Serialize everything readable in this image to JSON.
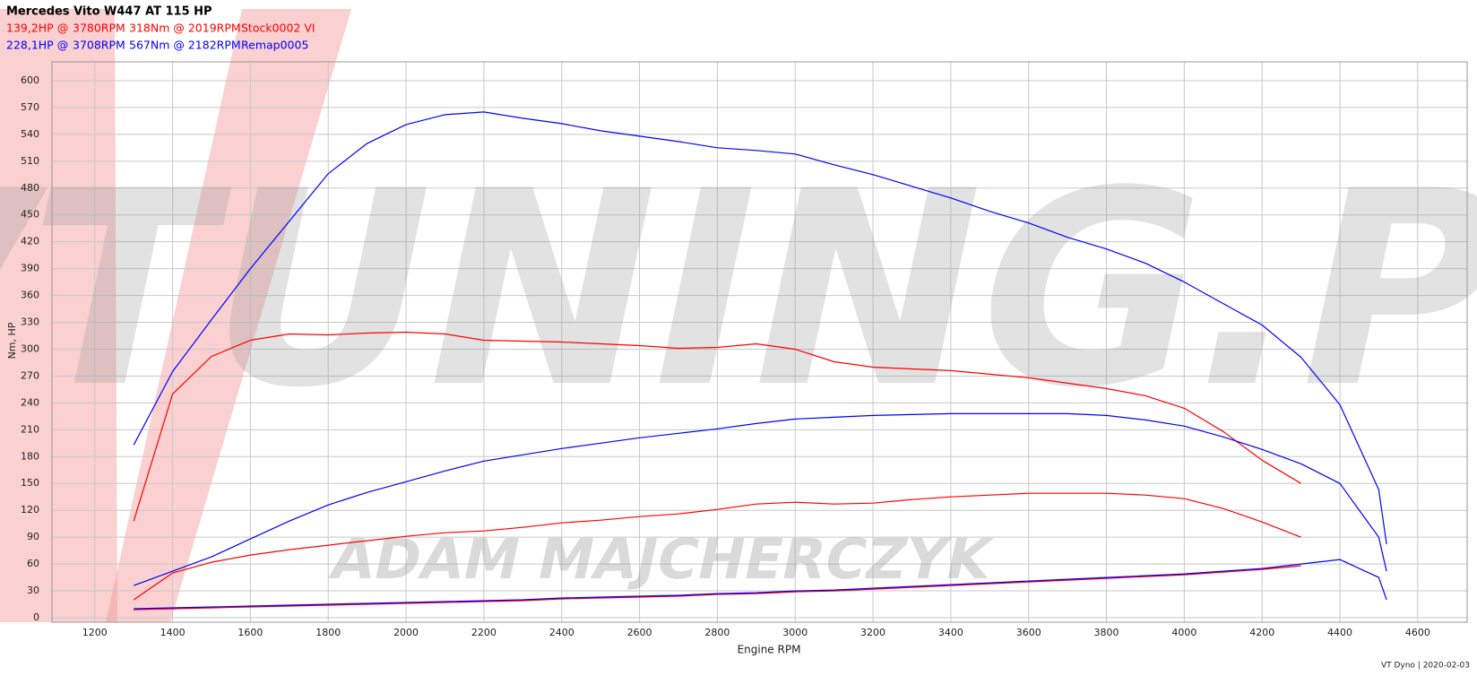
{
  "chart_data": {
    "type": "line",
    "title": "Mercedes Vito W447 AT 115 HP",
    "legend_rows": [
      {
        "color": "#ff0000",
        "parts": [
          "139,2HP @",
          "3780RPM",
          "318Nm @ 2019RPM",
          "Stock0002 VI"
        ]
      },
      {
        "color": "#0000ff",
        "parts": [
          "228,1HP @",
          "3708RPM",
          "567Nm @ 2182RPM",
          "Remap0005"
        ]
      }
    ],
    "x_label": "Engine RPM",
    "y_label": "Nm, HP",
    "footer": "VT Dyno | 2020-02-03",
    "watermark": "VTUNING.PL",
    "watermark_sub": "ADAM MAJCHERCZYK",
    "grid": true,
    "xlim": [
      1090,
      4727
    ],
    "ylim": [
      -5,
      621
    ],
    "xticks": [
      1200,
      1400,
      1600,
      1800,
      2000,
      2200,
      2400,
      2600,
      2800,
      3000,
      3200,
      3400,
      3600,
      3800,
      4000,
      4200,
      4400,
      4600
    ],
    "yticks": [
      0,
      30,
      60,
      90,
      120,
      150,
      180,
      210,
      240,
      270,
      300,
      330,
      360,
      390,
      420,
      450,
      480,
      510,
      540,
      570,
      600
    ],
    "x": [
      1300,
      1400,
      1500,
      1600,
      1700,
      1800,
      1900,
      2000,
      2100,
      2200,
      2300,
      2400,
      2500,
      2600,
      2700,
      2800,
      2900,
      3000,
      3100,
      3200,
      3300,
      3400,
      3500,
      3600,
      3700,
      3800,
      3900,
      4000,
      4100,
      4200,
      4300,
      4400,
      4500,
      4520
    ],
    "series": [
      {
        "color": "#ff0000",
        "values": [
          108,
          250,
          292,
          310,
          317,
          316,
          318,
          319,
          317,
          310,
          309,
          308,
          306,
          304,
          301,
          302,
          306,
          300,
          286,
          280,
          278,
          276,
          272,
          268,
          262,
          256,
          248,
          234,
          208,
          176,
          150,
          null,
          null,
          null
        ]
      },
      {
        "color": "#ff0000",
        "values": [
          20,
          50,
          62,
          70,
          76,
          81,
          86,
          91,
          95,
          97,
          101,
          106,
          109,
          113,
          116,
          121,
          127,
          129,
          127,
          128,
          132,
          135,
          137,
          139,
          139,
          139,
          137,
          133,
          122,
          107,
          90,
          null,
          null,
          null
        ]
      },
      {
        "color": "#ff0000",
        "values": [
          9,
          10,
          11,
          12,
          13,
          14,
          15,
          16,
          17,
          18,
          19,
          21,
          22,
          23,
          24,
          26,
          27,
          29,
          30,
          32,
          34,
          36,
          38,
          40,
          42,
          44,
          46,
          48,
          51,
          54,
          58,
          null,
          null,
          null
        ]
      },
      {
        "color": "#0000ff",
        "values": [
          193,
          275,
          333,
          390,
          443,
          496,
          530,
          551,
          562,
          565,
          558,
          552,
          544,
          538,
          532,
          525,
          522,
          518,
          506,
          495,
          482,
          469,
          454,
          441,
          425,
          412,
          396,
          375,
          351,
          327,
          291,
          238,
          143,
          82
        ]
      },
      {
        "color": "#0000ff",
        "values": [
          36,
          52,
          68,
          88,
          108,
          126,
          140,
          152,
          164,
          175,
          182,
          189,
          195,
          201,
          206,
          211,
          217,
          222,
          224,
          226,
          227,
          228,
          228,
          228,
          228,
          226,
          221,
          214,
          202,
          188,
          172,
          150,
          90,
          52
        ]
      },
      {
        "color": "#0000ff",
        "values": [
          10,
          11,
          12,
          13,
          14,
          15,
          16,
          17,
          18,
          19,
          20,
          22,
          23,
          24,
          25,
          27,
          28,
          30,
          31,
          33,
          35,
          37,
          39,
          41,
          43,
          45,
          47,
          49,
          52,
          55,
          60,
          65,
          45,
          20
        ]
      }
    ]
  }
}
